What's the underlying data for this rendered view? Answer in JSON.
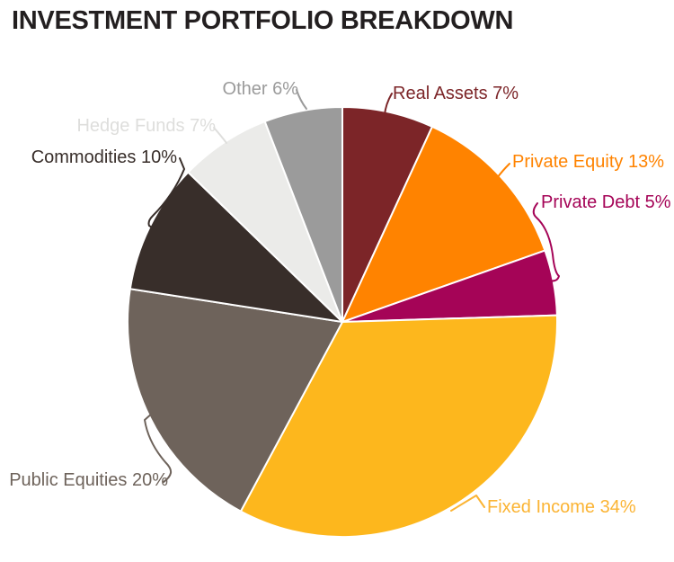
{
  "page": {
    "background": "#FFFFFF"
  },
  "header": {
    "title": "INVESTMENT PORTFOLIO BREAKDOWN",
    "title_color": "#231F20"
  },
  "chart_data": {
    "type": "pie",
    "title": "INVESTMENT PORTFOLIO BREAKDOWN",
    "start_angle_deg": 0,
    "direction": "clockwise",
    "legend_position": "outside-labels",
    "slices": [
      {
        "name": "Real Assets",
        "value_pct": 7,
        "label": "Real Assets 7%",
        "color": "#7C2528"
      },
      {
        "name": "Private Equity",
        "value_pct": 13,
        "label": "Private Equity 13%",
        "color": "#FF8300"
      },
      {
        "name": "Private Debt",
        "value_pct": 5,
        "label": "Private Debt 5%",
        "color": "#A50457"
      },
      {
        "name": "Fixed Income",
        "value_pct": 34,
        "label": "Fixed Income 34%",
        "color": "#FDB71D",
        "label_color": "#FBB434"
      },
      {
        "name": "Public Equities",
        "value_pct": 20,
        "label": "Public Equities 20%",
        "color": "#6E635B"
      },
      {
        "name": "Commodities",
        "value_pct": 10,
        "label": "Commodities 10%",
        "color": "#382E2A"
      },
      {
        "name": "Hedge Funds",
        "value_pct": 7,
        "label": "Hedge Funds 7%",
        "color": "#EBEBE9",
        "label_color": "#DEDEDC"
      },
      {
        "name": "Other",
        "value_pct": 6,
        "label": "Other 6%",
        "color": "#9B9B9B"
      }
    ]
  }
}
